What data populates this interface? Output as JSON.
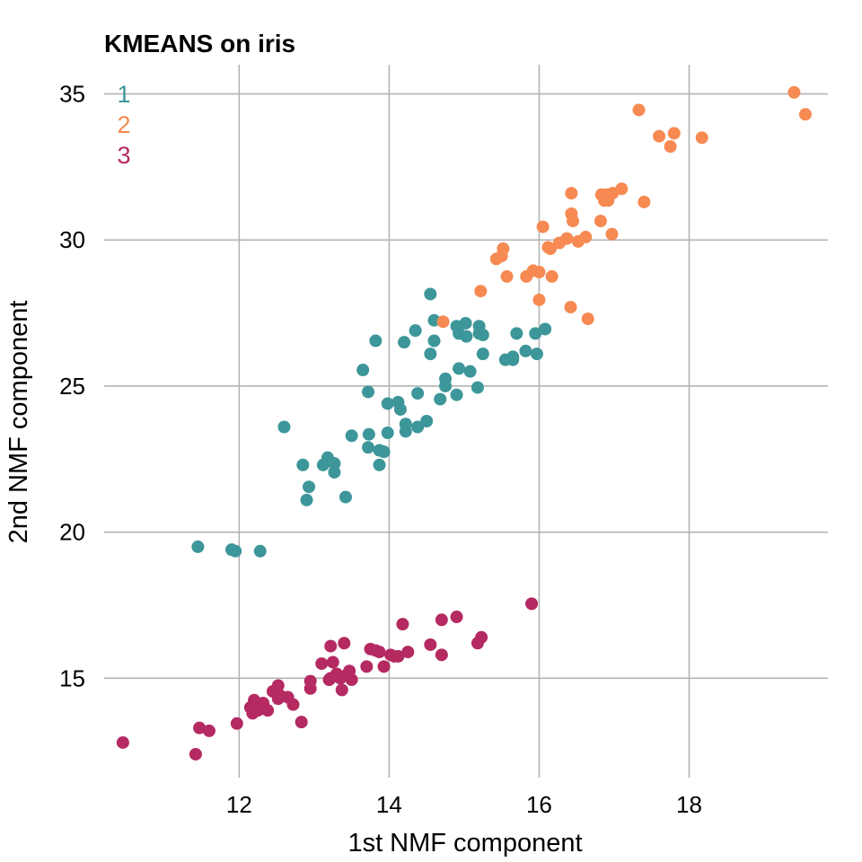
{
  "chart_data": {
    "type": "scatter",
    "title": "KMEANS on iris",
    "xlabel": "1st NMF component",
    "ylabel": "2nd NMF component",
    "xlim": [
      10.2,
      19.85
    ],
    "ylim": [
      11.6,
      36.0
    ],
    "x_ticks": [
      12,
      14,
      16,
      18
    ],
    "y_ticks": [
      15,
      20,
      25,
      30,
      35
    ],
    "grid": true,
    "legend_position": "top-left",
    "series": [
      {
        "name": "1",
        "color": "#3d9699",
        "points": [
          [
            11.45,
            19.5
          ],
          [
            11.9,
            19.4
          ],
          [
            11.95,
            19.35
          ],
          [
            12.28,
            19.35
          ],
          [
            12.6,
            23.6
          ],
          [
            12.85,
            22.3
          ],
          [
            12.9,
            21.1
          ],
          [
            12.93,
            21.55
          ],
          [
            13.12,
            22.3
          ],
          [
            13.18,
            22.55
          ],
          [
            13.27,
            22.05
          ],
          [
            13.27,
            22.35
          ],
          [
            13.42,
            21.2
          ],
          [
            13.5,
            23.3
          ],
          [
            13.65,
            25.55
          ],
          [
            13.72,
            24.8
          ],
          [
            13.72,
            22.9
          ],
          [
            13.73,
            23.35
          ],
          [
            13.82,
            26.55
          ],
          [
            13.87,
            22.3
          ],
          [
            13.87,
            22.8
          ],
          [
            13.93,
            22.75
          ],
          [
            13.98,
            24.4
          ],
          [
            13.98,
            23.4
          ],
          [
            14.12,
            24.45
          ],
          [
            14.15,
            24.2
          ],
          [
            14.2,
            26.5
          ],
          [
            14.22,
            23.7
          ],
          [
            14.22,
            23.45
          ],
          [
            14.35,
            26.9
          ],
          [
            14.38,
            24.75
          ],
          [
            14.38,
            23.6
          ],
          [
            14.5,
            23.8
          ],
          [
            14.55,
            28.15
          ],
          [
            14.55,
            26.1
          ],
          [
            14.6,
            27.25
          ],
          [
            14.6,
            26.55
          ],
          [
            14.68,
            24.55
          ],
          [
            14.75,
            25.25
          ],
          [
            14.75,
            25.0
          ],
          [
            14.9,
            27.05
          ],
          [
            14.9,
            24.7
          ],
          [
            14.93,
            25.6
          ],
          [
            14.93,
            26.8
          ],
          [
            15.02,
            27.15
          ],
          [
            15.03,
            26.7
          ],
          [
            15.08,
            25.5
          ],
          [
            15.18,
            24.95
          ],
          [
            15.2,
            27.05
          ],
          [
            15.2,
            26.8
          ],
          [
            15.25,
            26.75
          ],
          [
            15.25,
            26.1
          ],
          [
            15.55,
            25.9
          ],
          [
            15.65,
            25.9
          ],
          [
            15.65,
            26.0
          ],
          [
            15.7,
            26.8
          ],
          [
            15.82,
            26.2
          ],
          [
            15.95,
            26.8
          ],
          [
            15.97,
            26.1
          ],
          [
            16.08,
            26.95
          ]
        ]
      },
      {
        "name": "2",
        "color": "#f68a52",
        "points": [
          [
            14.72,
            27.2
          ],
          [
            15.22,
            28.25
          ],
          [
            15.43,
            29.35
          ],
          [
            15.5,
            29.45
          ],
          [
            15.52,
            29.7
          ],
          [
            15.57,
            28.75
          ],
          [
            15.83,
            28.75
          ],
          [
            15.92,
            28.95
          ],
          [
            16.0,
            28.9
          ],
          [
            16.0,
            27.95
          ],
          [
            16.05,
            30.45
          ],
          [
            16.12,
            29.75
          ],
          [
            16.15,
            29.7
          ],
          [
            16.17,
            28.75
          ],
          [
            16.27,
            29.9
          ],
          [
            16.37,
            30.05
          ],
          [
            16.42,
            27.7
          ],
          [
            16.43,
            31.6
          ],
          [
            16.43,
            30.9
          ],
          [
            16.45,
            30.65
          ],
          [
            16.52,
            29.95
          ],
          [
            16.62,
            30.1
          ],
          [
            16.65,
            27.3
          ],
          [
            16.82,
            30.65
          ],
          [
            16.83,
            31.55
          ],
          [
            16.87,
            31.35
          ],
          [
            16.9,
            31.55
          ],
          [
            16.92,
            31.35
          ],
          [
            16.97,
            30.2
          ],
          [
            16.98,
            31.6
          ],
          [
            17.1,
            31.75
          ],
          [
            17.33,
            34.45
          ],
          [
            17.4,
            31.3
          ],
          [
            17.6,
            33.55
          ],
          [
            17.75,
            33.2
          ],
          [
            17.8,
            33.65
          ],
          [
            18.17,
            33.5
          ],
          [
            19.4,
            35.05
          ],
          [
            19.55,
            34.3
          ]
        ]
      },
      {
        "name": "3",
        "color": "#b42a61",
        "points": [
          [
            10.45,
            12.8
          ],
          [
            11.42,
            12.4
          ],
          [
            11.47,
            13.3
          ],
          [
            11.6,
            13.2
          ],
          [
            11.97,
            13.45
          ],
          [
            12.15,
            14.0
          ],
          [
            12.18,
            13.8
          ],
          [
            12.2,
            14.25
          ],
          [
            12.25,
            13.9
          ],
          [
            12.3,
            14.05
          ],
          [
            12.32,
            14.15
          ],
          [
            12.38,
            13.9
          ],
          [
            12.45,
            14.55
          ],
          [
            12.48,
            14.55
          ],
          [
            12.52,
            14.75
          ],
          [
            12.52,
            14.3
          ],
          [
            12.55,
            14.4
          ],
          [
            12.65,
            14.35
          ],
          [
            12.72,
            14.1
          ],
          [
            12.83,
            13.5
          ],
          [
            12.95,
            14.65
          ],
          [
            12.95,
            14.9
          ],
          [
            13.1,
            15.5
          ],
          [
            13.2,
            14.95
          ],
          [
            13.22,
            15.0
          ],
          [
            13.22,
            16.1
          ],
          [
            13.25,
            15.55
          ],
          [
            13.3,
            15.15
          ],
          [
            13.35,
            15.0
          ],
          [
            13.37,
            14.6
          ],
          [
            13.4,
            16.2
          ],
          [
            13.43,
            15.1
          ],
          [
            13.47,
            15.25
          ],
          [
            13.5,
            14.95
          ],
          [
            13.7,
            15.4
          ],
          [
            13.75,
            16.0
          ],
          [
            13.82,
            15.95
          ],
          [
            13.87,
            15.9
          ],
          [
            13.93,
            15.4
          ],
          [
            14.02,
            15.8
          ],
          [
            14.07,
            15.75
          ],
          [
            14.12,
            15.75
          ],
          [
            14.18,
            16.85
          ],
          [
            14.25,
            15.9
          ],
          [
            14.55,
            16.15
          ],
          [
            14.7,
            15.8
          ],
          [
            14.7,
            17.0
          ],
          [
            14.9,
            17.1
          ],
          [
            15.18,
            16.2
          ],
          [
            15.23,
            16.4
          ],
          [
            15.9,
            17.55
          ]
        ]
      }
    ]
  }
}
